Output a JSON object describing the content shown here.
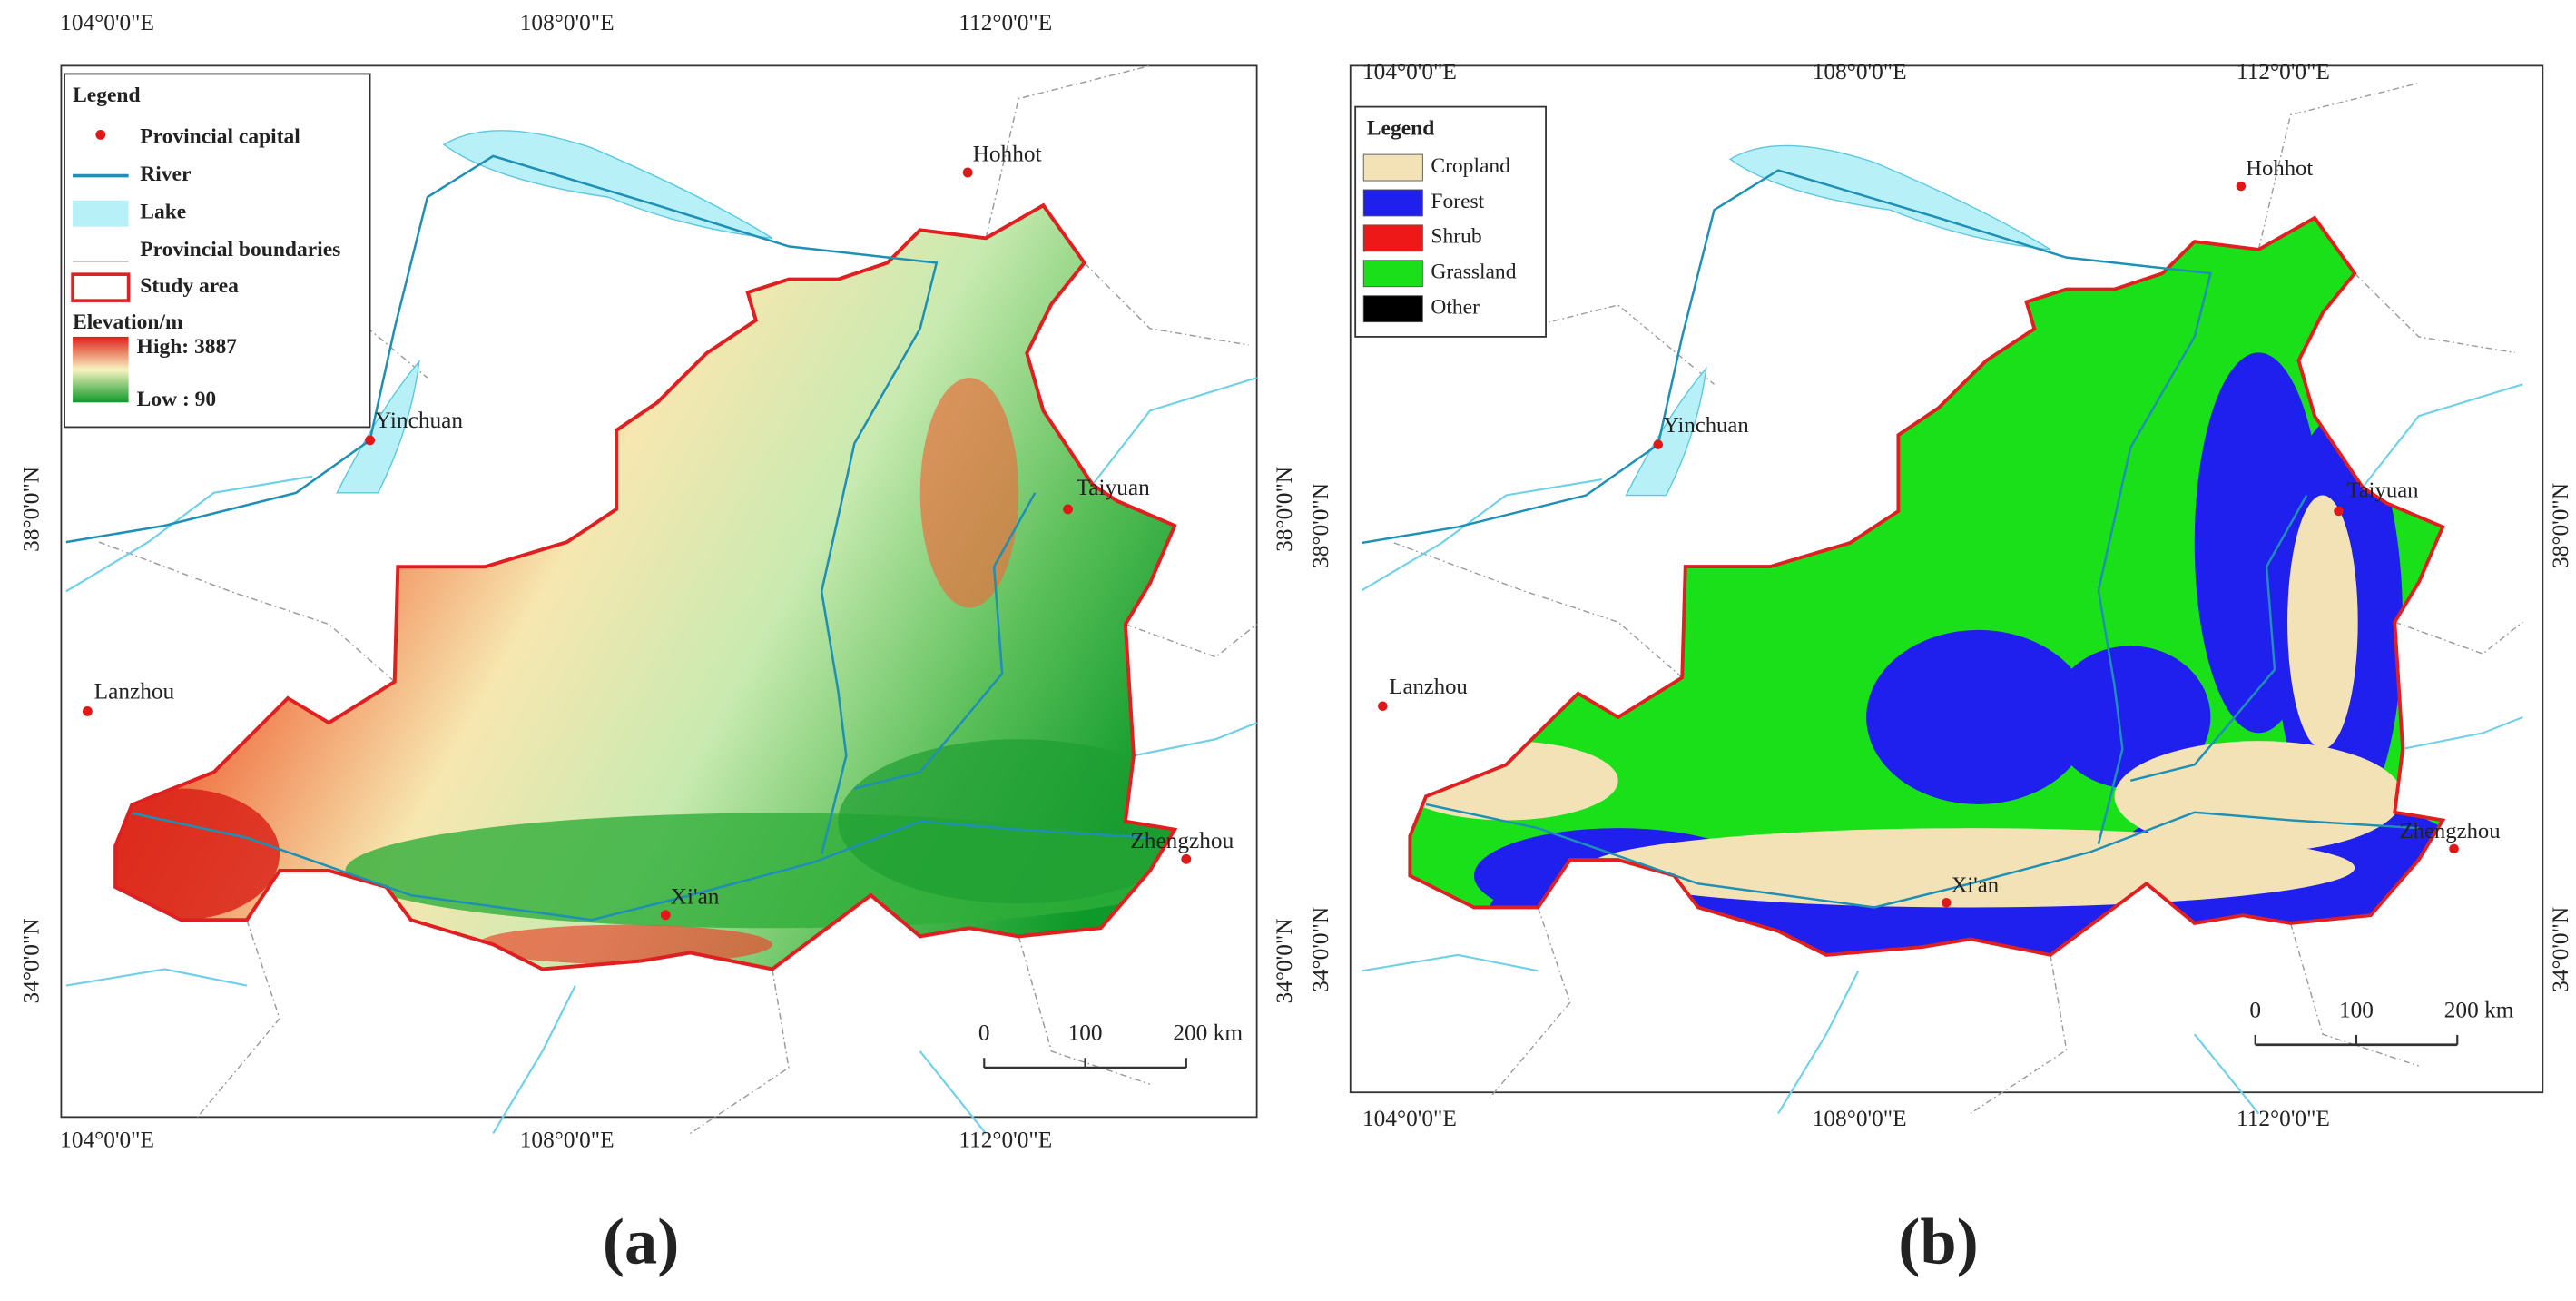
{
  "graticule": {
    "longitudes": [
      "104°0'0\"E",
      "108°0'0\"E",
      "112°0'0\"E"
    ],
    "latitudes": [
      "38°0'0\"N",
      "34°0'0\"N"
    ]
  },
  "cities": [
    "Hohhot",
    "Yinchuan",
    "Taiyuan",
    "Lanzhou",
    "Xi'an",
    "Zhengzhou"
  ],
  "scale_bar": [
    "0",
    "100",
    "200 km"
  ],
  "panels": [
    {
      "caption": "(a)",
      "legend": {
        "title": "Legend",
        "items": [
          "Provincial capital",
          "River",
          "Lake",
          "Provincial boundaries",
          "Study area"
        ],
        "elevation": {
          "title": "Elevation/m",
          "high": "High: 3887",
          "low": "Low : 90"
        }
      }
    },
    {
      "caption": "(b)",
      "legend": {
        "title": "Legend",
        "items": [
          "Cropland",
          "Forest",
          "Shrub",
          "Grassland",
          "Other"
        ]
      }
    }
  ]
}
